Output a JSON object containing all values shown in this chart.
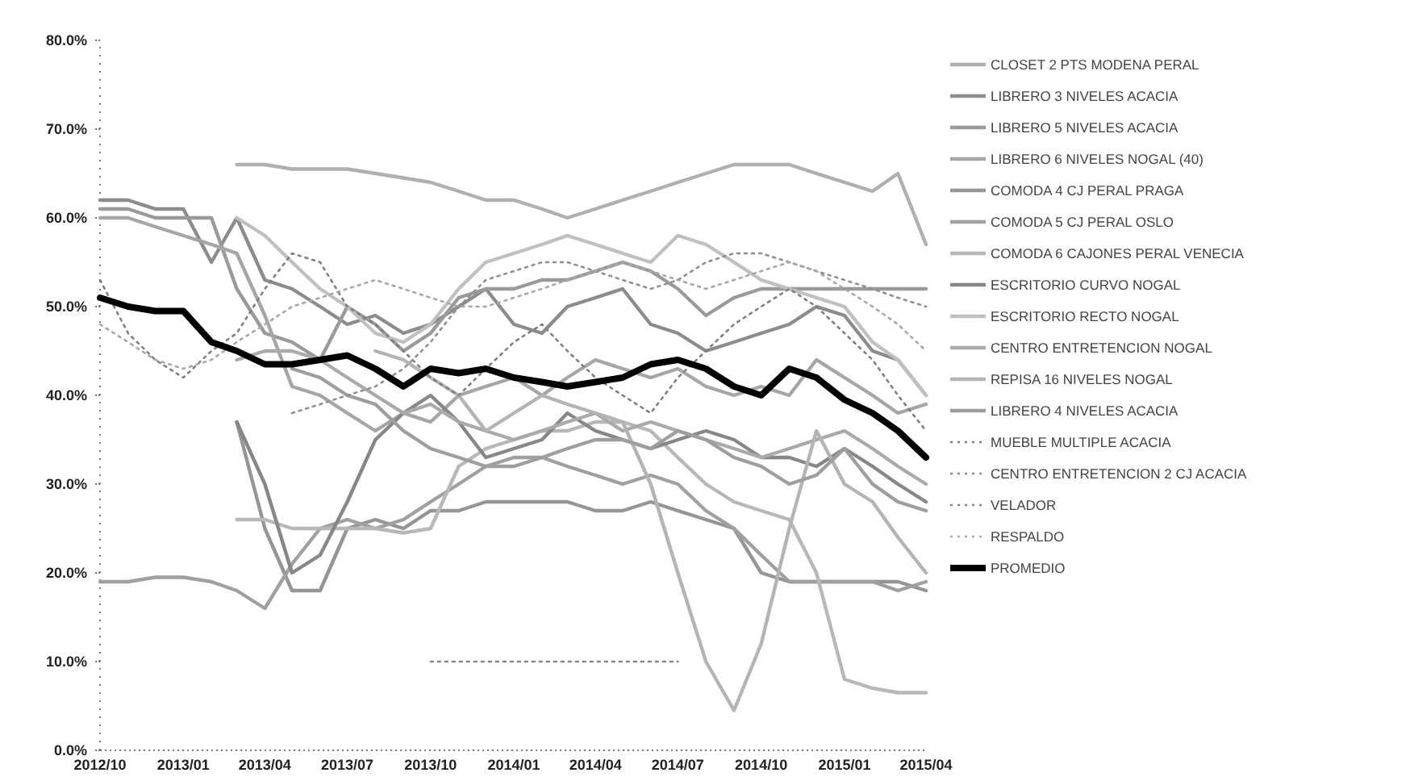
{
  "chart_data": {
    "type": "line",
    "x": [
      "2012-10",
      "2012-11",
      "2012-12",
      "2013-01",
      "2013-02",
      "2013-03",
      "2013-04",
      "2013-05",
      "2013-06",
      "2013-07",
      "2013-08",
      "2013-09",
      "2013-10",
      "2013-11",
      "2013-12",
      "2014-01",
      "2014-02",
      "2014-03",
      "2014-04",
      "2014-05",
      "2014-06",
      "2014-07",
      "2014-08",
      "2014-09",
      "2014-10",
      "2014-11",
      "2014-12",
      "2015-01",
      "2015-02",
      "2015-03",
      "2015-04"
    ],
    "xlim": [
      "2012-10",
      "2015-04"
    ],
    "xticks": [
      {
        "value": "2012-10",
        "label": "2012/10"
      },
      {
        "value": "2013-01",
        "label": "2013/01"
      },
      {
        "value": "2013-04",
        "label": "2013/04"
      },
      {
        "value": "2013-07",
        "label": "2013/07"
      },
      {
        "value": "2013-10",
        "label": "2013/10"
      },
      {
        "value": "2014-01",
        "label": "2014/01"
      },
      {
        "value": "2014-04",
        "label": "2014/04"
      },
      {
        "value": "2014-07",
        "label": "2014/07"
      },
      {
        "value": "2014-10",
        "label": "2014/10"
      },
      {
        "value": "2015-01",
        "label": "2015/01"
      },
      {
        "value": "2015-04",
        "label": "2015/04"
      }
    ],
    "ylim": [
      0,
      80
    ],
    "yticks": [
      {
        "value": 0,
        "label": "0.0%"
      },
      {
        "value": 10,
        "label": "10.0%"
      },
      {
        "value": 20,
        "label": "20.0%"
      },
      {
        "value": 30,
        "label": "30.0%"
      },
      {
        "value": 40,
        "label": "40.0%"
      },
      {
        "value": 50,
        "label": "50.0%"
      },
      {
        "value": 60,
        "label": "60.0%"
      },
      {
        "value": 70,
        "label": "70.0%"
      },
      {
        "value": 80,
        "label": "80.0%"
      }
    ],
    "legend": "right",
    "grid": false,
    "marker": "none",
    "series": [
      {
        "name": "CLOSET 2 PTS MODENA PERAL",
        "color": "#b0b0b0",
        "values": [
          null,
          null,
          null,
          null,
          null,
          66,
          66,
          65.5,
          65.5,
          65.5,
          65,
          64.5,
          64,
          63,
          62,
          62,
          61,
          60,
          61,
          62,
          63,
          64,
          65,
          66,
          66,
          66,
          65,
          64,
          63,
          65,
          57
        ]
      },
      {
        "name": "LIBRERO 3 NIVELES ACACIA",
        "color": "#8c8c8c",
        "values": [
          62,
          62,
          61,
          61,
          55,
          60,
          53,
          52,
          50,
          48,
          49,
          47,
          48,
          50,
          52,
          48,
          47,
          50,
          51,
          52,
          48,
          47,
          45,
          46,
          47,
          48,
          50,
          49,
          45,
          44,
          40
        ]
      },
      {
        "name": "LIBRERO 5 NIVELES ACACIA",
        "color": "#9a9a9a",
        "values": [
          61,
          61,
          60,
          60,
          60,
          52,
          47,
          46,
          44,
          50,
          48,
          45,
          47,
          51,
          52,
          52,
          53,
          53,
          54,
          55,
          54,
          52,
          49,
          51,
          52,
          52,
          52,
          52,
          52,
          52,
          52
        ]
      },
      {
        "name": "LIBRERO 6 NIVELES NOGAL (40)",
        "color": "#a6a6a6",
        "values": [
          60,
          60,
          59,
          58,
          57,
          56,
          49,
          41,
          40,
          38,
          36,
          38,
          37,
          40,
          41,
          42,
          40,
          42,
          44,
          43,
          42,
          43,
          41,
          40,
          41,
          40,
          44,
          42,
          40,
          38,
          39
        ]
      },
      {
        "name": "COMODA 4 CJ PERAL PRAGA",
        "color": "#959595",
        "values": [
          null,
          null,
          null,
          null,
          null,
          37,
          25,
          18,
          18,
          25,
          26,
          25,
          27,
          27,
          28,
          28,
          28,
          28,
          27,
          27,
          28,
          27,
          26,
          25,
          20,
          19,
          19,
          19,
          19,
          19,
          18
        ]
      },
      {
        "name": "COMODA 5 CJ PERAL OSLO",
        "color": "#a0a0a0",
        "values": [
          19,
          19,
          19.5,
          19.5,
          19,
          18,
          16,
          21,
          25,
          26,
          25,
          26,
          28,
          30,
          32,
          33,
          33,
          32,
          31,
          30,
          31,
          30,
          27,
          25,
          22,
          19,
          19,
          19,
          19,
          18,
          19
        ]
      },
      {
        "name": "COMODA 6 CAJONES PERAL VENECIA",
        "color": "#b8b8b8",
        "values": [
          null,
          null,
          null,
          null,
          null,
          26,
          26,
          25,
          25,
          25,
          25,
          24.5,
          25,
          32,
          34,
          35,
          36,
          36,
          37,
          37,
          36,
          33,
          30,
          28,
          27,
          26,
          20,
          8,
          7,
          6.5,
          6.5
        ]
      },
      {
        "name": "ESCRITORIO CURVO NOGAL",
        "color": "#878787",
        "values": [
          null,
          null,
          null,
          null,
          null,
          37,
          30,
          20,
          22,
          28,
          35,
          38,
          40,
          37,
          33,
          34,
          35,
          38,
          36,
          35,
          34,
          35,
          36,
          35,
          33,
          33,
          32,
          34,
          32,
          30,
          28
        ]
      },
      {
        "name": "ESCRITORIO RECTO NOGAL",
        "color": "#c0c0c0",
        "values": [
          null,
          null,
          null,
          null,
          null,
          60,
          58,
          55,
          52,
          50,
          47,
          46,
          48,
          52,
          55,
          56,
          57,
          58,
          57,
          56,
          55,
          58,
          57,
          55,
          53,
          52,
          51,
          50,
          46,
          44,
          40
        ]
      },
      {
        "name": "CENTRO ENTRETENCION NOGAL",
        "color": "#aaaaaa",
        "values": [
          null,
          null,
          null,
          null,
          null,
          44,
          45,
          45,
          44,
          42,
          40,
          38,
          39,
          37,
          36,
          35,
          36,
          37,
          38,
          36,
          37,
          36,
          35,
          34,
          33,
          34,
          35,
          36,
          34,
          32,
          30
        ]
      },
      {
        "name": "REPISA 16 NIVELES NOGAL",
        "color": "#b4b4b4",
        "values": [
          null,
          null,
          null,
          null,
          null,
          null,
          null,
          null,
          null,
          null,
          45,
          44,
          42,
          40,
          36,
          38,
          40,
          39,
          38,
          37,
          30,
          20,
          10,
          4.5,
          12,
          25,
          36,
          30,
          28,
          24,
          20
        ]
      },
      {
        "name": "LIBRERO 4 NIVELES ACACIA",
        "color": "#9e9e9e",
        "values": [
          null,
          null,
          null,
          null,
          null,
          null,
          null,
          43,
          42,
          40,
          39,
          36,
          34,
          33,
          32,
          32,
          33,
          34,
          35,
          35,
          34,
          36,
          35,
          33,
          32,
          30,
          31,
          34,
          30,
          28,
          27
        ]
      },
      {
        "name": "MUEBLE MULTIPLE ACACIA",
        "color": "#808080",
        "line_style": "dotted",
        "values": [
          53,
          47,
          44,
          42,
          45,
          47,
          52,
          56,
          55,
          50,
          48,
          45,
          42,
          40,
          43,
          46,
          48,
          45,
          42,
          40,
          38,
          42,
          45,
          48,
          50,
          52,
          50,
          47,
          44,
          40,
          36
        ]
      },
      {
        "name": "CENTRO ENTRETENCION 2 CJ ACACIA",
        "color": "#909090",
        "line_style": "dotted",
        "values": [
          null,
          null,
          null,
          null,
          null,
          null,
          null,
          38,
          39,
          40,
          41,
          43,
          46,
          50,
          53,
          54,
          55,
          55,
          54,
          53,
          52,
          53,
          55,
          56,
          56,
          55,
          54,
          53,
          52,
          51,
          50
        ]
      },
      {
        "name": "VELADOR",
        "color": "#888888",
        "line_style": "dotted",
        "values": [
          null,
          null,
          null,
          null,
          null,
          null,
          null,
          null,
          null,
          null,
          null,
          null,
          10,
          10,
          10,
          10,
          10,
          10,
          10,
          10,
          10,
          10,
          null,
          null,
          null,
          null,
          null,
          null,
          null,
          null,
          null
        ]
      },
      {
        "name": "RESPALDO",
        "color": "#a8a8a8",
        "line_style": "dotted",
        "values": [
          48,
          46,
          44,
          43,
          44,
          46,
          48,
          50,
          51,
          52,
          53,
          52,
          51,
          50,
          50,
          51,
          52,
          53,
          54,
          55,
          54,
          53,
          52,
          53,
          54,
          55,
          54,
          52,
          50,
          48,
          45
        ]
      },
      {
        "name": "PROMEDIO",
        "color": "#000000",
        "values": [
          51,
          50,
          49.5,
          49.5,
          46,
          45,
          43.5,
          43.5,
          44,
          44.5,
          43,
          41,
          43,
          42.5,
          43,
          42,
          41.5,
          41,
          41.5,
          42,
          43.5,
          44,
          43,
          41,
          40,
          43,
          42,
          39.5,
          38,
          36,
          33
        ]
      }
    ]
  }
}
